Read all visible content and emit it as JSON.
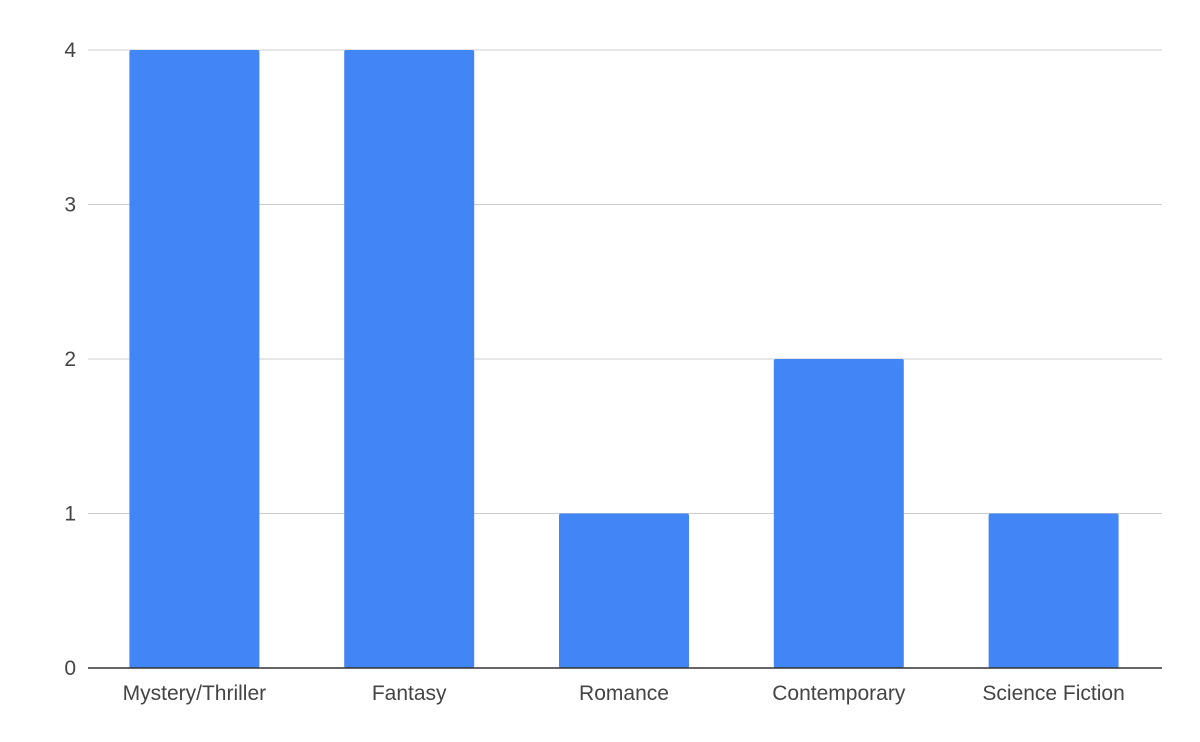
{
  "chart_data": {
    "type": "bar",
    "title": "",
    "xlabel": "",
    "ylabel": "",
    "categories": [
      "Mystery/Thriller",
      "Fantasy",
      "Romance",
      "Contemporary",
      "Science Fiction"
    ],
    "values": [
      4,
      4,
      1,
      2,
      1
    ],
    "ylim": [
      0,
      4
    ],
    "yticks": [
      "0",
      "1",
      "2",
      "3",
      "4"
    ],
    "grid": true,
    "legend": "none",
    "colors": {
      "bar": "#4285f4",
      "grid": "#cccccc",
      "axis": "#333333",
      "text": "#444444"
    }
  }
}
